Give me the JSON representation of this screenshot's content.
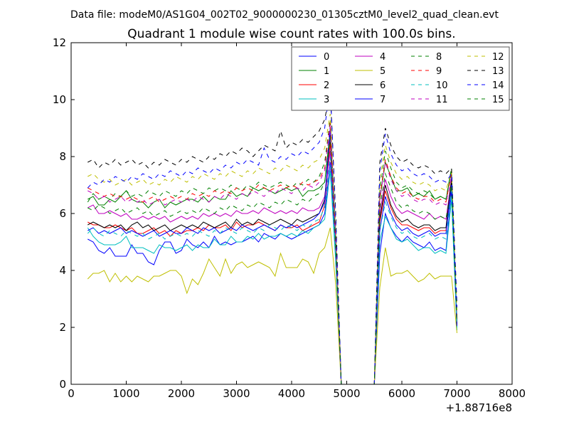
{
  "chart_data": {
    "type": "line",
    "header": "Data file: modeM0/AS1G04_002T02_9000000230_01305cztM0_level2_quad_clean.evt",
    "title": "Quadrant 1 module wise count rates with 100.0s bins.",
    "xlabel": "",
    "ylabel": "",
    "x_offset_label": "+1.88716e8",
    "xlim": [
      0,
      8000
    ],
    "ylim": [
      0,
      12
    ],
    "xticks": [
      "0",
      "1000",
      "2000",
      "3000",
      "4000",
      "5000",
      "6000",
      "7000",
      "8000"
    ],
    "yticks": [
      "0",
      "2",
      "4",
      "6",
      "8",
      "10",
      "12"
    ],
    "grid": false,
    "legend_position": "top-right",
    "legend_columns": 4,
    "x": [
      300,
      400,
      500,
      600,
      700,
      800,
      900,
      1000,
      1100,
      1200,
      1300,
      1400,
      1500,
      1600,
      1700,
      1800,
      1900,
      2000,
      2100,
      2200,
      2300,
      2400,
      2500,
      2600,
      2700,
      2800,
      2900,
      3000,
      3100,
      3200,
      3300,
      3400,
      3500,
      3600,
      3700,
      3800,
      3900,
      4000,
      4100,
      4200,
      4300,
      4400,
      4500,
      4600,
      4700,
      4800,
      4900,
      5000,
      5100,
      5200,
      5300,
      5400,
      5500,
      5600,
      5700,
      5800,
      5900,
      6000,
      6100,
      6200,
      6300,
      6400,
      6500,
      6600,
      6700,
      6800,
      6900,
      7000
    ],
    "series": [
      {
        "name": "0",
        "color": "#0000ff",
        "dash": "solid",
        "values": [
          5.1,
          5.0,
          4.7,
          4.6,
          4.8,
          4.5,
          4.5,
          4.5,
          4.9,
          4.6,
          4.6,
          4.3,
          4.2,
          4.7,
          5.0,
          5.0,
          4.6,
          4.7,
          5.1,
          4.9,
          4.8,
          5.0,
          4.8,
          5.2,
          4.9,
          5.0,
          4.9,
          5.0,
          5.0,
          5.1,
          5.2,
          5.0,
          5.3,
          5.2,
          5.1,
          5.3,
          5.2,
          5.1,
          5.2,
          5.3,
          5.4,
          5.5,
          5.6,
          6.0,
          7.8,
          4.5,
          0,
          0,
          0,
          0,
          0,
          0,
          0,
          4.6,
          6.0,
          5.5,
          5.2,
          5.0,
          5.2,
          5.0,
          4.9,
          4.8,
          5.0,
          4.7,
          4.8,
          4.7,
          6.8,
          2.0
        ]
      },
      {
        "name": "1",
        "color": "#008000",
        "dash": "solid",
        "values": [
          6.5,
          6.6,
          6.3,
          6.3,
          6.5,
          6.4,
          6.6,
          6.8,
          6.5,
          6.4,
          6.4,
          6.2,
          6.4,
          6.5,
          6.2,
          6.4,
          6.3,
          6.4,
          6.5,
          6.5,
          6.4,
          6.6,
          6.4,
          6.6,
          6.5,
          6.5,
          6.8,
          6.6,
          6.7,
          6.6,
          6.9,
          6.8,
          6.9,
          6.8,
          6.7,
          6.8,
          6.9,
          6.8,
          6.9,
          6.6,
          6.8,
          6.8,
          6.9,
          7.1,
          8.9,
          5.0,
          0,
          0,
          0,
          0,
          0,
          0,
          0,
          6.5,
          7.8,
          7.3,
          6.8,
          6.8,
          6.9,
          6.6,
          6.7,
          6.6,
          6.8,
          6.5,
          6.6,
          6.5,
          7.5,
          2.2
        ]
      },
      {
        "name": "2",
        "color": "#ff0000",
        "dash": "solid",
        "values": [
          5.7,
          5.6,
          5.6,
          5.5,
          5.5,
          5.6,
          5.5,
          5.4,
          5.5,
          5.3,
          5.3,
          5.4,
          5.5,
          5.3,
          5.4,
          5.2,
          5.4,
          5.3,
          5.4,
          5.4,
          5.5,
          5.4,
          5.6,
          5.5,
          5.5,
          5.6,
          5.4,
          5.7,
          5.5,
          5.6,
          5.6,
          5.7,
          5.6,
          5.5,
          5.4,
          5.6,
          5.5,
          5.5,
          5.6,
          5.4,
          5.5,
          5.6,
          5.7,
          6.3,
          8.5,
          4.6,
          0,
          0,
          0,
          0,
          0,
          0,
          0,
          5.7,
          6.8,
          6.2,
          5.8,
          5.6,
          5.6,
          5.5,
          5.4,
          5.5,
          5.5,
          5.3,
          5.4,
          5.4,
          7.0,
          2.0
        ]
      },
      {
        "name": "3",
        "color": "#00bfbf",
        "dash": "solid",
        "values": [
          5.5,
          5.2,
          5.0,
          4.9,
          4.9,
          4.9,
          5.0,
          5.2,
          4.8,
          4.8,
          4.8,
          4.7,
          4.6,
          4.9,
          4.8,
          4.8,
          4.7,
          4.8,
          4.9,
          4.7,
          4.9,
          4.8,
          4.8,
          5.1,
          4.9,
          4.9,
          5.2,
          5.0,
          5.0,
          5.2,
          5.1,
          5.3,
          5.1,
          5.2,
          5.2,
          5.3,
          5.2,
          5.3,
          5.2,
          5.4,
          5.3,
          5.5,
          5.6,
          5.8,
          7.5,
          4.3,
          0,
          0,
          0,
          0,
          0,
          0,
          0,
          5.0,
          5.9,
          5.5,
          5.1,
          5.0,
          5.1,
          4.9,
          4.7,
          4.8,
          4.8,
          4.6,
          4.7,
          4.6,
          6.5,
          1.9
        ]
      },
      {
        "name": "4",
        "color": "#bf00bf",
        "dash": "solid",
        "values": [
          6.2,
          6.3,
          6.0,
          6.0,
          6.1,
          6.0,
          5.9,
          6.0,
          5.8,
          5.8,
          5.9,
          5.8,
          5.9,
          5.8,
          5.9,
          5.7,
          5.8,
          5.9,
          5.8,
          5.9,
          5.8,
          6.0,
          5.9,
          6.0,
          5.9,
          6.0,
          5.9,
          6.1,
          6.0,
          6.0,
          6.1,
          6.0,
          6.2,
          6.1,
          6.0,
          6.1,
          6.0,
          6.1,
          6.0,
          6.2,
          6.1,
          6.1,
          6.2,
          6.6,
          8.2,
          4.8,
          0,
          0,
          0,
          0,
          0,
          0,
          0,
          6.0,
          7.2,
          6.6,
          6.2,
          6.0,
          6.1,
          6.0,
          5.9,
          5.8,
          6.0,
          5.8,
          5.9,
          5.8,
          7.2,
          2.1
        ]
      },
      {
        "name": "5",
        "color": "#bfbf00",
        "dash": "solid",
        "values": [
          3.7,
          3.9,
          3.9,
          4.0,
          3.6,
          3.9,
          3.6,
          3.8,
          3.6,
          3.8,
          3.7,
          3.6,
          3.8,
          3.8,
          3.9,
          4.0,
          4.0,
          3.8,
          3.2,
          3.7,
          3.5,
          3.9,
          4.4,
          4.1,
          3.8,
          4.4,
          3.9,
          4.2,
          4.3,
          4.1,
          4.2,
          4.3,
          4.2,
          4.1,
          3.8,
          4.6,
          4.1,
          4.1,
          4.1,
          4.4,
          4.3,
          3.9,
          4.6,
          4.8,
          5.5,
          3.5,
          0,
          0,
          0,
          0,
          0,
          0,
          0,
          3.4,
          4.8,
          3.8,
          3.9,
          3.9,
          4.0,
          3.8,
          3.6,
          3.7,
          3.9,
          3.7,
          3.8,
          3.8,
          3.8,
          1.8
        ]
      },
      {
        "name": "6",
        "color": "#000000",
        "dash": "solid",
        "values": [
          5.6,
          5.7,
          5.6,
          5.5,
          5.6,
          5.5,
          5.6,
          5.4,
          5.6,
          5.7,
          5.5,
          5.6,
          5.4,
          5.5,
          5.6,
          5.4,
          5.5,
          5.6,
          5.5,
          5.6,
          5.5,
          5.7,
          5.6,
          5.5,
          5.6,
          5.7,
          5.5,
          5.8,
          5.6,
          5.7,
          5.6,
          5.8,
          5.7,
          5.6,
          5.7,
          5.8,
          5.7,
          5.6,
          5.8,
          5.7,
          5.8,
          5.9,
          6.0,
          6.5,
          8.8,
          5.0,
          0,
          0,
          0,
          0,
          0,
          0,
          0,
          5.8,
          7.0,
          6.3,
          5.9,
          5.7,
          5.8,
          5.6,
          5.5,
          5.6,
          5.6,
          5.4,
          5.5,
          5.5,
          7.2,
          2.1
        ]
      },
      {
        "name": "7",
        "color": "#0000ff",
        "dash": "solid",
        "values": [
          5.4,
          5.5,
          5.3,
          5.4,
          5.3,
          5.4,
          5.5,
          5.3,
          5.4,
          5.3,
          5.2,
          5.3,
          5.4,
          5.2,
          5.3,
          5.4,
          5.3,
          5.3,
          5.5,
          5.4,
          5.3,
          5.5,
          5.4,
          5.5,
          5.3,
          5.4,
          5.5,
          5.4,
          5.6,
          5.5,
          5.4,
          5.5,
          5.6,
          5.5,
          5.4,
          5.6,
          5.5,
          5.6,
          5.5,
          5.6,
          5.7,
          5.8,
          6.0,
          6.4,
          9.0,
          4.8,
          0,
          0,
          0,
          0,
          0,
          0,
          0,
          5.4,
          6.6,
          6.0,
          5.6,
          5.4,
          5.5,
          5.3,
          5.2,
          5.3,
          5.4,
          5.2,
          5.3,
          5.3,
          7.0,
          2.0
        ]
      },
      {
        "name": "8",
        "color": "#008000",
        "dash": "dashed",
        "values": [
          6.4,
          6.7,
          6.5,
          6.6,
          6.5,
          6.7,
          6.6,
          6.8,
          6.6,
          6.7,
          6.6,
          6.8,
          6.7,
          6.6,
          6.8,
          6.7,
          6.6,
          6.8,
          6.7,
          6.9,
          6.8,
          6.7,
          6.9,
          6.8,
          6.9,
          6.8,
          7.0,
          6.9,
          6.8,
          7.0,
          6.9,
          7.1,
          7.0,
          6.9,
          7.0,
          7.1,
          7.0,
          6.9,
          7.1,
          7.0,
          7.2,
          7.1,
          7.3,
          7.8,
          9.3,
          5.2,
          0,
          0,
          0,
          0,
          0,
          0,
          0,
          6.8,
          8.2,
          7.6,
          7.1,
          6.9,
          7.0,
          6.8,
          6.7,
          6.8,
          6.7,
          6.5,
          6.6,
          6.5,
          7.6,
          2.4
        ]
      },
      {
        "name": "9",
        "color": "#ff0000",
        "dash": "dashed",
        "values": [
          6.9,
          6.8,
          6.7,
          6.6,
          6.7,
          6.6,
          6.6,
          6.5,
          6.6,
          6.5,
          6.4,
          6.5,
          6.6,
          6.4,
          6.5,
          6.6,
          6.5,
          6.6,
          6.5,
          6.7,
          6.6,
          6.7,
          6.6,
          6.8,
          6.7,
          6.8,
          6.7,
          6.9,
          6.8,
          6.9,
          6.8,
          7.0,
          6.9,
          6.8,
          6.9,
          7.0,
          6.9,
          7.0,
          6.9,
          7.1,
          7.0,
          7.1,
          7.2,
          7.6,
          9.2,
          5.1,
          0,
          0,
          0,
          0,
          0,
          0,
          0,
          6.6,
          7.9,
          7.3,
          6.9,
          6.7,
          6.8,
          6.6,
          6.5,
          6.6,
          6.6,
          6.4,
          6.5,
          6.4,
          7.4,
          2.3
        ]
      },
      {
        "name": "10",
        "color": "#00bfbf",
        "dash": "dashed",
        "values": [
          5.3,
          5.5,
          5.3,
          5.2,
          5.4,
          5.3,
          5.2,
          5.4,
          5.3,
          5.2,
          5.3,
          5.1,
          5.2,
          5.3,
          5.1,
          5.2,
          5.3,
          5.2,
          5.3,
          5.2,
          5.4,
          5.3,
          5.2,
          5.4,
          5.3,
          5.5,
          5.4,
          5.3,
          5.5,
          5.4,
          5.3,
          5.5,
          5.4,
          5.6,
          5.5,
          5.4,
          5.6,
          5.5,
          5.4,
          5.6,
          5.5,
          5.7,
          5.8,
          6.2,
          8.0,
          4.6,
          0,
          0,
          0,
          0,
          0,
          0,
          0,
          5.4,
          6.4,
          5.9,
          5.5,
          5.3,
          5.4,
          5.2,
          5.1,
          5.2,
          5.3,
          5.1,
          5.2,
          5.1,
          6.8,
          2.0
        ]
      },
      {
        "name": "11",
        "color": "#bf00bf",
        "dash": "dashed",
        "values": [
          6.8,
          6.7,
          6.5,
          6.6,
          6.4,
          6.5,
          6.6,
          6.4,
          6.5,
          6.4,
          6.5,
          6.3,
          6.4,
          6.5,
          6.3,
          6.4,
          6.5,
          6.4,
          6.5,
          6.4,
          6.6,
          6.5,
          6.4,
          6.6,
          6.5,
          6.7,
          6.6,
          6.5,
          6.7,
          6.6,
          6.8,
          6.7,
          6.6,
          6.8,
          6.7,
          6.9,
          6.8,
          6.7,
          6.9,
          6.8,
          7.0,
          6.9,
          7.1,
          7.5,
          9.1,
          5.0,
          0,
          0,
          0,
          0,
          0,
          0,
          0,
          6.5,
          7.8,
          7.2,
          6.8,
          6.6,
          6.7,
          6.5,
          6.4,
          6.5,
          6.5,
          6.3,
          6.4,
          6.3,
          7.3,
          2.3
        ]
      },
      {
        "name": "12",
        "color": "#bfbf00",
        "dash": "dashed",
        "values": [
          7.3,
          7.4,
          7.2,
          7.1,
          7.2,
          7.0,
          7.1,
          7.2,
          7.0,
          7.1,
          7.2,
          7.0,
          7.1,
          7.0,
          7.2,
          7.1,
          7.3,
          7.2,
          7.1,
          7.3,
          7.2,
          7.4,
          7.3,
          7.2,
          7.4,
          7.3,
          7.5,
          7.4,
          7.3,
          7.5,
          7.4,
          7.6,
          7.5,
          7.4,
          7.6,
          7.5,
          7.7,
          7.6,
          7.5,
          7.7,
          7.6,
          7.8,
          7.9,
          8.3,
          9.5,
          5.6,
          0,
          0,
          0,
          0,
          0,
          0,
          0,
          7.2,
          8.4,
          7.8,
          7.4,
          7.2,
          7.3,
          7.1,
          7.0,
          7.1,
          7.0,
          6.8,
          6.9,
          6.8,
          7.5,
          2.6
        ]
      },
      {
        "name": "13",
        "color": "#000000",
        "dash": "dashed",
        "values": [
          7.8,
          7.9,
          7.6,
          7.8,
          7.7,
          7.9,
          7.7,
          7.8,
          7.9,
          7.7,
          7.8,
          7.6,
          7.8,
          7.7,
          7.9,
          7.8,
          7.7,
          7.9,
          7.8,
          8.0,
          7.9,
          7.8,
          8.0,
          7.9,
          8.1,
          8.0,
          8.2,
          8.1,
          8.3,
          8.2,
          8.0,
          8.2,
          8.4,
          8.3,
          8.2,
          8.9,
          8.3,
          8.5,
          8.4,
          8.6,
          8.5,
          8.7,
          8.9,
          9.3,
          10.3,
          6.0,
          0,
          0,
          0,
          0,
          0,
          0,
          0,
          7.8,
          9.0,
          8.4,
          8.0,
          7.8,
          7.9,
          7.7,
          7.6,
          7.7,
          7.6,
          7.4,
          7.5,
          7.4,
          7.6,
          2.8
        ]
      },
      {
        "name": "14",
        "color": "#0000ff",
        "dash": "dashed",
        "values": [
          6.9,
          7.1,
          7.0,
          7.2,
          7.1,
          7.3,
          7.2,
          7.1,
          7.3,
          7.2,
          7.4,
          7.3,
          7.2,
          7.4,
          7.3,
          7.5,
          7.4,
          7.3,
          7.5,
          7.4,
          7.6,
          7.5,
          7.4,
          7.6,
          7.5,
          7.7,
          7.6,
          7.8,
          7.7,
          7.9,
          7.8,
          7.7,
          8.3,
          7.9,
          7.8,
          8.0,
          7.9,
          8.1,
          8.0,
          8.2,
          8.1,
          8.3,
          8.5,
          9.0,
          10.5,
          5.8,
          0,
          0,
          0,
          0,
          0,
          0,
          0,
          7.5,
          8.8,
          8.1,
          7.7,
          7.5,
          7.6,
          7.4,
          7.3,
          7.4,
          7.3,
          7.1,
          7.2,
          7.1,
          7.4,
          2.7
        ]
      },
      {
        "name": "15",
        "color": "#008000",
        "dash": "dashed",
        "values": [
          6.2,
          6.1,
          6.3,
          6.2,
          6.0,
          6.1,
          6.2,
          6.0,
          6.1,
          6.2,
          6.0,
          6.1,
          5.9,
          6.0,
          6.1,
          5.9,
          6.0,
          6.1,
          6.0,
          6.1,
          6.0,
          6.2,
          6.1,
          6.0,
          6.2,
          6.1,
          6.3,
          6.2,
          6.1,
          6.3,
          6.2,
          6.4,
          6.3,
          6.2,
          6.4,
          6.3,
          6.5,
          6.4,
          6.3,
          6.5,
          6.4,
          6.6,
          6.7,
          7.1,
          8.7,
          4.9,
          0,
          0,
          0,
          0,
          0,
          0,
          0,
          6.2,
          7.4,
          6.9,
          6.4,
          6.2,
          6.3,
          6.1,
          6.0,
          6.1,
          6.0,
          5.8,
          5.9,
          5.8,
          7.0,
          2.2
        ]
      }
    ]
  }
}
